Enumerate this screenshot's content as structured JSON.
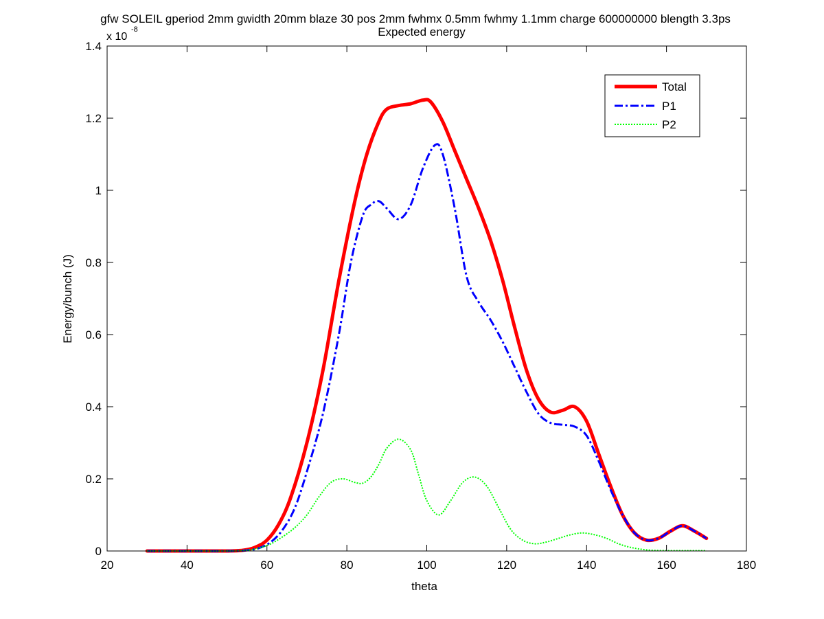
{
  "chart_data": {
    "type": "line",
    "title_line1": "gfw SOLEIL gperiod 2mm gwidth 20mm blaze 30 pos 2mm fwhmx 0.5mm fwhmy 1.1mm charge 600000000 blength 3.3ps",
    "title_line2": "Expected energy",
    "xlabel": "theta",
    "ylabel": "Energy/bunch (J)",
    "y_exponent_base": "x 10",
    "y_exponent_power": "-8",
    "xlim": [
      20,
      180
    ],
    "ylim": [
      0,
      1.4
    ],
    "x_ticks": [
      20,
      40,
      60,
      80,
      100,
      120,
      140,
      160,
      180
    ],
    "y_ticks": [
      0,
      0.2,
      0.4,
      0.6,
      0.8,
      1,
      1.2,
      1.4
    ],
    "y_tick_labels": [
      "0",
      "0.2",
      "0.4",
      "0.6",
      "0.8",
      "1",
      "1.2",
      "1.4"
    ],
    "grid": false,
    "legend_position": "top-right",
    "series": [
      {
        "name": "Total",
        "color": "#ff0000",
        "style": "solid",
        "x": [
          30,
          40,
          50,
          54,
          57,
          60,
          63,
          66,
          70,
          74,
          78,
          82,
          85,
          88,
          90,
          93,
          96,
          99,
          101,
          104,
          107,
          110,
          113,
          116,
          119,
          122,
          125,
          128,
          131,
          134,
          137,
          140,
          143,
          146,
          149,
          152,
          155,
          158,
          161,
          164,
          167,
          170
        ],
        "y": [
          0,
          0,
          0,
          0.002,
          0.01,
          0.03,
          0.075,
          0.15,
          0.3,
          0.5,
          0.75,
          0.97,
          1.1,
          1.19,
          1.225,
          1.235,
          1.24,
          1.25,
          1.245,
          1.19,
          1.11,
          1.03,
          0.95,
          0.86,
          0.75,
          0.62,
          0.5,
          0.42,
          0.385,
          0.39,
          0.4,
          0.36,
          0.27,
          0.18,
          0.1,
          0.05,
          0.03,
          0.035,
          0.055,
          0.07,
          0.055,
          0.035
        ]
      },
      {
        "name": "P1",
        "color": "#0000ff",
        "style": "dashdot",
        "x": [
          30,
          40,
          50,
          55,
          58,
          61,
          64,
          67,
          70,
          74,
          78,
          81,
          84,
          86,
          88,
          90,
          93,
          96,
          99,
          102,
          104,
          107,
          110,
          113,
          116,
          119,
          122,
          125,
          128,
          131,
          134,
          137,
          140,
          143,
          146,
          149,
          152,
          155,
          158,
          161,
          164,
          167,
          170
        ],
        "y": [
          0,
          0,
          0,
          0.002,
          0.008,
          0.025,
          0.06,
          0.12,
          0.22,
          0.38,
          0.6,
          0.8,
          0.93,
          0.96,
          0.97,
          0.95,
          0.92,
          0.96,
          1.06,
          1.125,
          1.1,
          0.95,
          0.76,
          0.69,
          0.64,
          0.58,
          0.51,
          0.44,
          0.38,
          0.355,
          0.35,
          0.345,
          0.32,
          0.25,
          0.17,
          0.1,
          0.05,
          0.03,
          0.035,
          0.055,
          0.07,
          0.055,
          0.035
        ]
      },
      {
        "name": "P2",
        "color": "#00ff00",
        "style": "dotted",
        "x": [
          30,
          40,
          50,
          55,
          58,
          61,
          64,
          67,
          70,
          73,
          76,
          79,
          82,
          84,
          86,
          88,
          90,
          93,
          96,
          98,
          100,
          103,
          106,
          109,
          112,
          115,
          118,
          121,
          124,
          127,
          130,
          133,
          136,
          139,
          142,
          145,
          148,
          151,
          155,
          160,
          165,
          170
        ],
        "y": [
          0,
          0,
          0,
          0.002,
          0.008,
          0.02,
          0.04,
          0.065,
          0.1,
          0.15,
          0.19,
          0.2,
          0.19,
          0.188,
          0.205,
          0.24,
          0.285,
          0.31,
          0.28,
          0.21,
          0.14,
          0.1,
          0.14,
          0.19,
          0.205,
          0.18,
          0.12,
          0.06,
          0.03,
          0.02,
          0.025,
          0.035,
          0.045,
          0.05,
          0.045,
          0.035,
          0.02,
          0.01,
          0.003,
          0.001,
          0.001,
          0.001
        ]
      }
    ]
  }
}
